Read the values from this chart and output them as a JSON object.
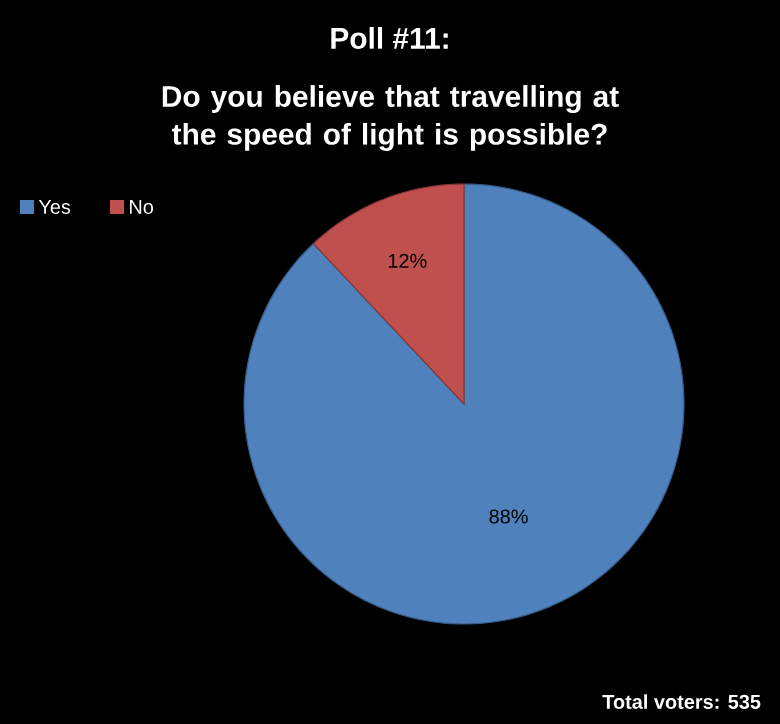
{
  "chart_data": {
    "type": "pie",
    "title": "Poll #11:",
    "subtitle": "Do you believe that travelling at the speed of light is possible?",
    "categories": [
      "Yes",
      "No"
    ],
    "values": [
      88,
      12
    ],
    "colors": [
      "#4f81bd",
      "#c0504d"
    ],
    "value_labels": [
      "88%",
      "12%"
    ],
    "legend": "top left",
    "annotations": [
      "Total voters: 535"
    ]
  }
}
